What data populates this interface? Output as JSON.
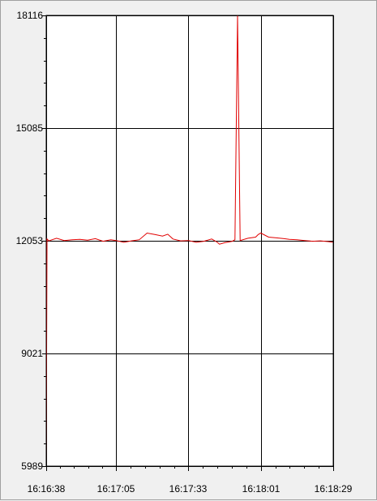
{
  "colors": {
    "background": "#f0f0f0",
    "plot_background": "#ffffff",
    "grid": "#000000",
    "series": "#e00000"
  },
  "chart_data": {
    "type": "line",
    "title": "",
    "xlabel": "",
    "ylabel": "",
    "grid": true,
    "legend": "none",
    "y_ticks": [
      "18116",
      "15085",
      "12053",
      "9021",
      "5989"
    ],
    "x_ticks": [
      "16:16:38",
      "16:17:05",
      "16:17:33",
      "16:18:01",
      "16:18:29"
    ],
    "ylim": [
      5989,
      18116
    ],
    "xlim": [
      "16:16:38",
      "16:18:29"
    ],
    "x": [
      "16:16:38",
      "16:16:38.3",
      "16:16:39",
      "16:16:42",
      "16:16:45",
      "16:16:48",
      "16:16:51",
      "16:16:54",
      "16:16:57",
      "16:17:00",
      "16:17:03",
      "16:17:05",
      "16:17:08",
      "16:17:11",
      "16:17:14",
      "16:17:17",
      "16:17:20",
      "16:17:23",
      "16:17:25",
      "16:17:27",
      "16:17:30",
      "16:17:33",
      "16:17:36",
      "16:17:39",
      "16:17:42",
      "16:17:44",
      "16:17:45",
      "16:17:47",
      "16:17:50",
      "16:17:51",
      "16:17:52",
      "16:17:53",
      "16:17:56",
      "16:17:59",
      "16:18:00",
      "16:18:01",
      "16:18:04",
      "16:18:07",
      "16:18:10",
      "16:18:12",
      "16:18:15",
      "16:18:18",
      "16:18:21",
      "16:18:24",
      "16:18:27",
      "16:18:29"
    ],
    "series": [
      {
        "values": [
          5989,
          12100,
          12050,
          12120,
          12060,
          12080,
          12090,
          12070,
          12110,
          12040,
          12080,
          12060,
          12010,
          12050,
          12080,
          12260,
          12220,
          12180,
          12230,
          12100,
          12050,
          12060,
          12010,
          12040,
          12100,
          12020,
          11960,
          12000,
          12040,
          12080,
          18116,
          12060,
          12120,
          12150,
          12220,
          12260,
          12150,
          12130,
          12110,
          12090,
          12080,
          12060,
          12040,
          12050,
          12030,
          12010
        ]
      }
    ]
  }
}
